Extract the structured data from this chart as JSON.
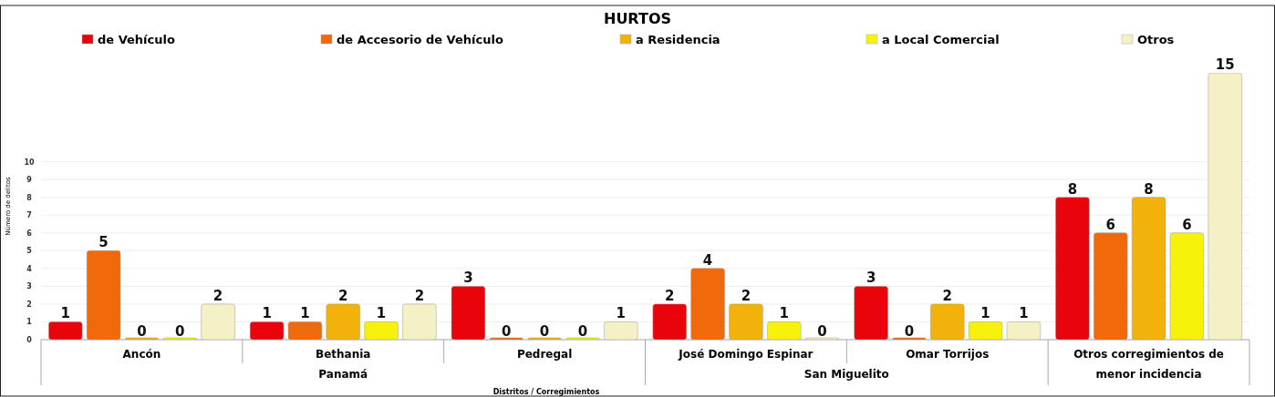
{
  "chart_data": {
    "type": "bar",
    "title": "HURTOS",
    "xlabel": "Distritos / Corregimientos",
    "ylabel": "Número de delitos",
    "categories": [
      "Ancón",
      "Bethania",
      "Pedregal",
      "José Domingo Espinar",
      "Omar Torrijos",
      "Otros corregimientos de menor incidencia"
    ],
    "series": [
      {
        "name": "de Vehículo",
        "color": "#e8040a",
        "values": [
          1,
          1,
          3,
          2,
          3,
          8
        ]
      },
      {
        "name": "de Accesorio de Vehículo",
        "color": "#f06a0c",
        "values": [
          5,
          1,
          0,
          4,
          0,
          6
        ]
      },
      {
        "name": "a Residencia",
        "color": "#f2b20a",
        "values": [
          0,
          2,
          0,
          2,
          2,
          8
        ]
      },
      {
        "name": "a Local Comercial",
        "color": "#f6f20a",
        "values": [
          0,
          1,
          0,
          1,
          1,
          6
        ]
      },
      {
        "name": "Otros",
        "color": "#f4f2c4",
        "values": [
          2,
          2,
          1,
          0,
          1,
          15
        ]
      }
    ],
    "annotations": [
      "Panamá",
      "San Miguelito"
    ],
    "ylim": [
      0,
      15
    ],
    "yticks": [
      0,
      1,
      2,
      3,
      4,
      5,
      6,
      7,
      8,
      9,
      10
    ],
    "grid": "y",
    "legend": "top",
    "data_labels": true
  }
}
